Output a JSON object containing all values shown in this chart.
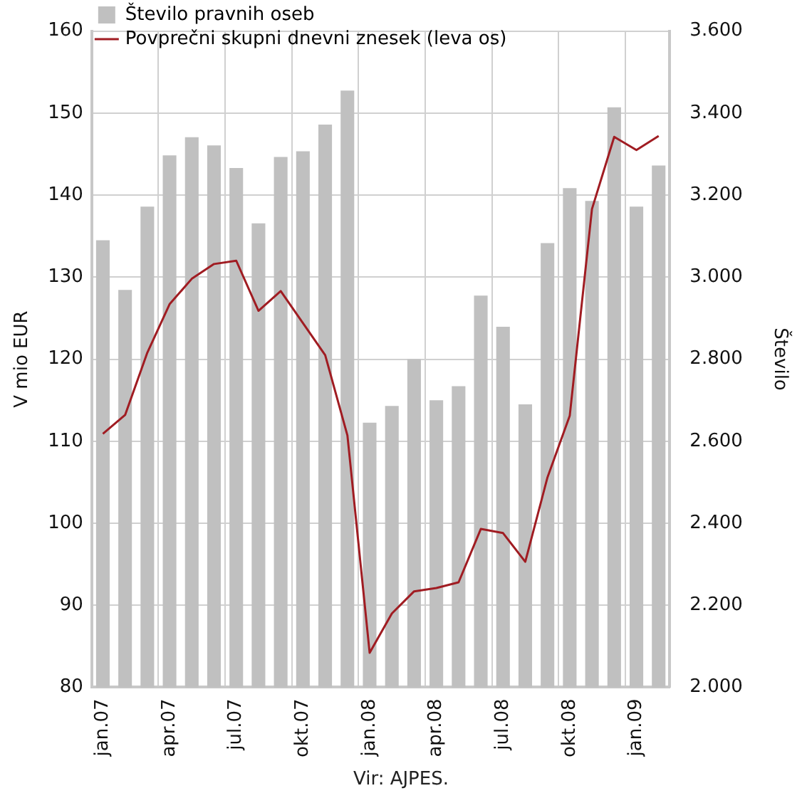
{
  "chart_data": {
    "type": "bar",
    "ylabel": "V mio EUR",
    "y2label": "Število",
    "annotations": [
      "Vir: AJPES."
    ],
    "categories": [
      "jan.07",
      null,
      null,
      "apr.07",
      null,
      null,
      "jul.07",
      null,
      null,
      "okt.07",
      null,
      null,
      "jan.08",
      null,
      null,
      "apr.08",
      null,
      null,
      "jul.08",
      null,
      null,
      "okt.08",
      null,
      null,
      "jan.09",
      null
    ],
    "series": [
      {
        "name": "Število pravnih oseb",
        "axis": "y2",
        "color": "#c0c0c0",
        "values": [
          3090,
          2969,
          3172,
          3297,
          3341,
          3321,
          3266,
          3131,
          3293,
          3307,
          3372,
          3455,
          2645,
          2686,
          2800,
          2700,
          2734,
          2955,
          2879,
          2690,
          3083,
          3217,
          3186,
          3414,
          3172,
          3272
        ]
      },
      {
        "name": "Povprečni skupni dnevni znesek (leva os)",
        "type": "line",
        "color": "#a01c22",
        "values": [
          110.9,
          113.2,
          120.8,
          126.7,
          129.8,
          131.6,
          132.0,
          125.9,
          128.3,
          124.4,
          120.5,
          110.7,
          84.2,
          89.0,
          91.7,
          92.1,
          92.8,
          99.3,
          98.8,
          95.3,
          105.6,
          113.1,
          138.3,
          147.1,
          145.5,
          147.2
        ]
      }
    ],
    "ylim": [
      80,
      160
    ],
    "yticks": [
      80,
      90,
      100,
      110,
      120,
      130,
      140,
      150,
      160
    ],
    "y2lim": [
      2000,
      3600
    ],
    "y2ticks": [
      {
        "value": 2000,
        "label": "2.000"
      },
      {
        "value": 2200,
        "label": "2.200"
      },
      {
        "value": 2400,
        "label": "2.400"
      },
      {
        "value": 2600,
        "label": "2.600"
      },
      {
        "value": 2800,
        "label": "2.800"
      },
      {
        "value": 3000,
        "label": "3.000"
      },
      {
        "value": 3200,
        "label": "3.200"
      },
      {
        "value": 3400,
        "label": "3.400"
      },
      {
        "value": 3600,
        "label": "3.600"
      }
    ],
    "grid": true,
    "legend": "top left",
    "marker": "none",
    "line_style": "solid"
  }
}
